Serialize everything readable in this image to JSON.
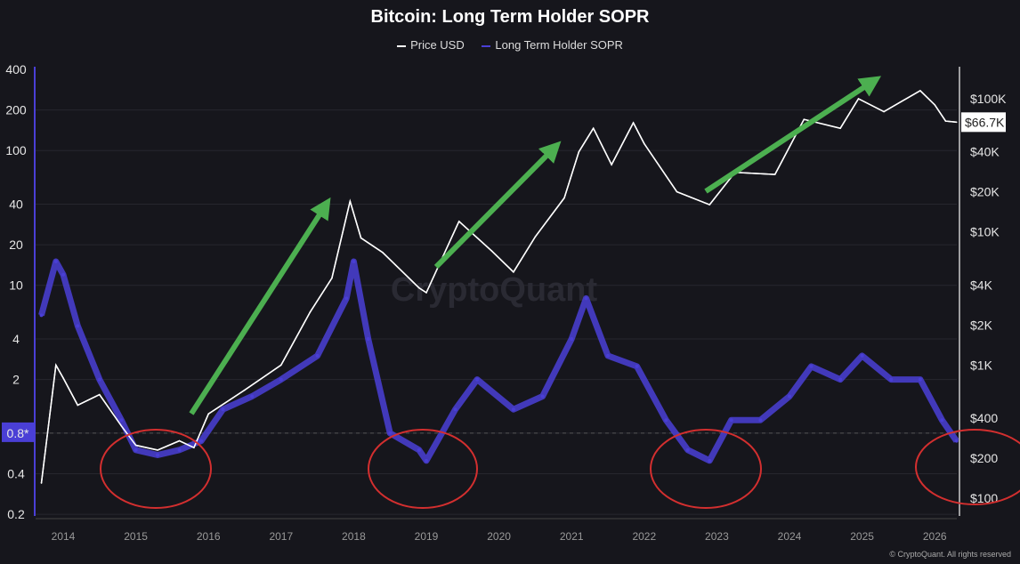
{
  "chart_data": {
    "type": "line",
    "title": "Bitcoin: Long Term Holder SOPR",
    "legend_position": "top-center",
    "grid": true,
    "x_ticks": [
      "2014",
      "2015",
      "2016",
      "2017",
      "2018",
      "2019",
      "2020",
      "2021",
      "2022",
      "2023",
      "2024",
      "2025",
      "2026"
    ],
    "left_axis": {
      "scale": "log",
      "range": [
        0.2,
        400
      ],
      "ticks": [
        "400",
        "200",
        "100",
        "40",
        "20",
        "10",
        "4",
        "2",
        "0.8*",
        "0.4",
        "0.2"
      ],
      "tick_values": [
        400,
        200,
        100,
        40,
        20,
        10,
        4,
        2,
        0.8,
        0.4,
        0.2
      ],
      "highlight": "0.8*"
    },
    "right_axis": {
      "scale": "log",
      "range": [
        100,
        100000
      ],
      "ticks": [
        "$100K",
        "$40K",
        "$20K",
        "$10K",
        "$4K",
        "$2K",
        "$1K",
        "$400",
        "$200",
        "$100"
      ],
      "tick_values": [
        100000,
        40000,
        20000,
        10000,
        4000,
        2000,
        1000,
        400,
        200,
        100
      ],
      "last_value_label": "$66.7K",
      "last_value": 66700
    },
    "series": [
      {
        "name": "Price USD",
        "color": "#ffffff",
        "axis": "right",
        "x": [
          2013.7,
          2013.9,
          2014.0,
          2014.2,
          2014.5,
          2014.8,
          2015.0,
          2015.3,
          2015.6,
          2015.8,
          2016.0,
          2016.5,
          2017.0,
          2017.4,
          2017.7,
          2017.95,
          2018.1,
          2018.4,
          2018.9,
          2019.0,
          2019.45,
          2019.9,
          2020.2,
          2020.5,
          2020.9,
          2021.1,
          2021.3,
          2021.55,
          2021.85,
          2022.0,
          2022.45,
          2022.9,
          2023.25,
          2023.8,
          2024.2,
          2024.7,
          2024.95,
          2025.3,
          2025.8,
          2026.0,
          2026.15,
          2026.3
        ],
        "values": [
          130,
          1000,
          800,
          500,
          600,
          350,
          250,
          230,
          270,
          240,
          430,
          650,
          1000,
          2500,
          4500,
          17000,
          9000,
          7000,
          3800,
          3500,
          12000,
          7200,
          5000,
          9200,
          18000,
          40000,
          60000,
          32000,
          66000,
          46000,
          20000,
          16000,
          28000,
          27000,
          70000,
          60000,
          100000,
          80000,
          115000,
          90000,
          68000,
          66700
        ]
      },
      {
        "name": "Long Term Holder SOPR",
        "color": "#4a3fd6",
        "axis": "left",
        "x": [
          2013.7,
          2013.9,
          2014.0,
          2014.2,
          2014.5,
          2014.8,
          2015.0,
          2015.3,
          2015.6,
          2015.9,
          2016.2,
          2016.6,
          2017.0,
          2017.5,
          2017.9,
          2018.0,
          2018.2,
          2018.5,
          2018.9,
          2019.0,
          2019.4,
          2019.7,
          2020.2,
          2020.6,
          2021.0,
          2021.2,
          2021.5,
          2021.9,
          2022.3,
          2022.6,
          2022.9,
          2023.2,
          2023.6,
          2024.0,
          2024.3,
          2024.7,
          2025.0,
          2025.4,
          2025.8,
          2026.1,
          2026.3
        ],
        "values": [
          6,
          15,
          12,
          5,
          2,
          1,
          0.6,
          0.55,
          0.6,
          0.7,
          1.2,
          1.5,
          2,
          3,
          8,
          15,
          4,
          0.8,
          0.6,
          0.5,
          1.2,
          2,
          1.2,
          1.5,
          4,
          8,
          3,
          2.5,
          1,
          0.6,
          0.5,
          1,
          1,
          1.5,
          2.5,
          2,
          3,
          2,
          2,
          1,
          0.7
        ]
      }
    ],
    "annotations": {
      "arrow_color": "#4caf50",
      "ellipse_color": "#d32f2f"
    }
  },
  "watermark": "CryptoQuant",
  "copyright": "© CryptoQuant. All rights reserved"
}
